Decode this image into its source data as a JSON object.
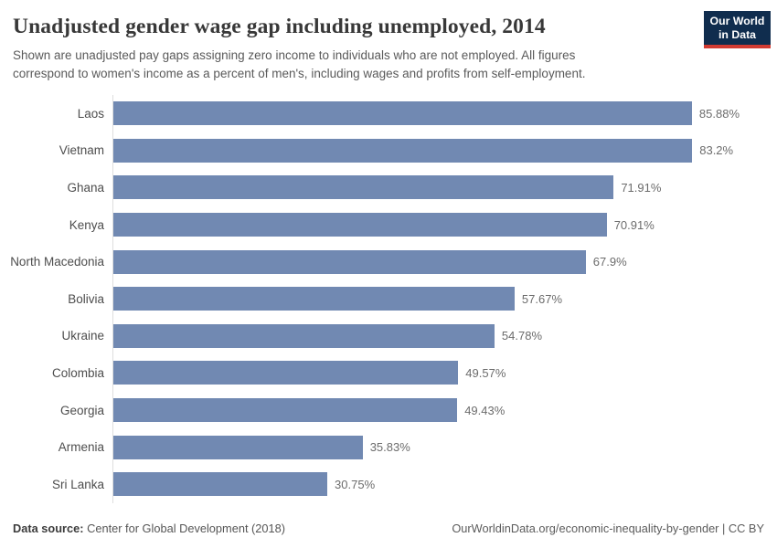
{
  "header": {
    "title": "Unadjusted gender wage gap including unemployed, 2014",
    "subtitle": "Shown are unadjusted pay gaps assigning zero income to individuals who are not employed. All figures\ncorrespond to women's income as a percent of men's, including wages and profits from self-employment.",
    "logo": {
      "line1": "Our World",
      "line2": "in Data"
    }
  },
  "chart_data": {
    "type": "bar",
    "orientation": "horizontal",
    "title": "Unadjusted gender wage gap including unemployed, 2014",
    "categories": [
      "Laos",
      "Vietnam",
      "Ghana",
      "Kenya",
      "North Macedonia",
      "Bolivia",
      "Ukraine",
      "Colombia",
      "Georgia",
      "Armenia",
      "Sri Lanka"
    ],
    "values": [
      85.88,
      83.2,
      71.91,
      70.91,
      67.9,
      57.67,
      54.78,
      49.57,
      49.43,
      35.83,
      30.75
    ],
    "value_labels": [
      "85.88%",
      "83.2%",
      "71.91%",
      "70.91%",
      "67.9%",
      "57.67%",
      "54.78%",
      "49.57%",
      "49.43%",
      "35.83%",
      "30.75%"
    ],
    "unit": "%",
    "xlabel": "",
    "ylabel": "",
    "xlim": [
      0,
      90
    ],
    "grid": false,
    "legend": false,
    "bar_color": "#7189b2"
  },
  "footer": {
    "source_label": "Data source:",
    "source_value": "Center for Global Development (2018)",
    "attribution": "OurWorldinData.org/economic-inequality-by-gender | CC BY"
  },
  "colors": {
    "bar": "#7189b2",
    "logo_navy": "#102d4e",
    "logo_red": "#d13b32",
    "axis_line": "#dedede"
  }
}
